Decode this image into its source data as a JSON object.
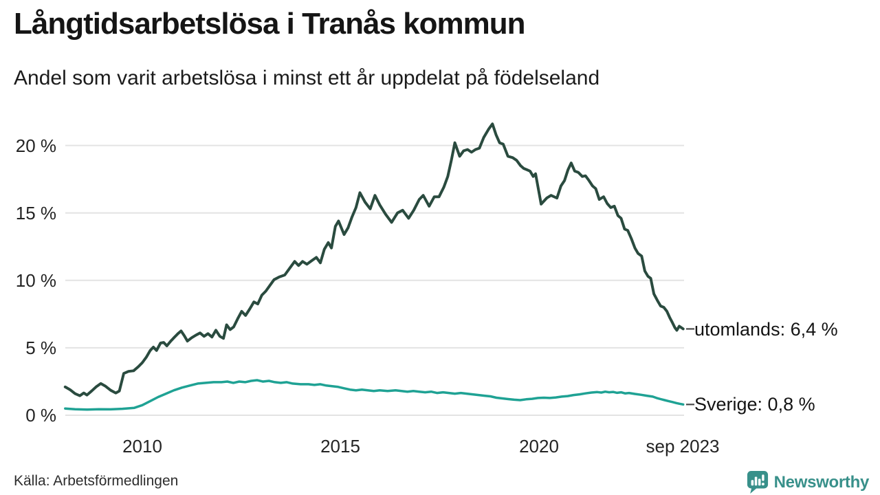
{
  "header": {
    "title": "Långtidsarbetslösa i Tranås kommun",
    "subtitle": "Andel som varit arbetslösa i minst ett år uppdelat på födelseland"
  },
  "footer": {
    "source": "Källa: Arbetsförmedlingen",
    "brand": "Newsworthy",
    "brand_color": "#38908a"
  },
  "chart_data": {
    "type": "line",
    "title": "Långtidsarbetslösa i Tranås kommun",
    "subtitle": "Andel som varit arbetslösa i minst ett år uppdelat på födelseland",
    "unit": "%",
    "x_range": [
      2008.0,
      2023.75
    ],
    "ylim": [
      0,
      22
    ],
    "grid": "horizontal",
    "grid_color": "#e3e3e3",
    "background": "#ffffff",
    "legend_position": "right-end-labels",
    "y_ticks": [
      {
        "value": 20,
        "label": "20 %"
      },
      {
        "value": 15,
        "label": "15 %"
      },
      {
        "value": 10,
        "label": "10 %"
      },
      {
        "value": 5,
        "label": "5 %"
      },
      {
        "value": 0,
        "label": "0 %"
      }
    ],
    "x_ticks": [
      {
        "year": 2010,
        "label": "2010"
      },
      {
        "year": 2015,
        "label": "2015"
      },
      {
        "year": 2020,
        "label": "2020"
      },
      {
        "year": 2023.67,
        "label": "sep 2023"
      }
    ],
    "series": [
      {
        "name": "utomlands",
        "end_label": "utomlands: 6,4 %",
        "last_value": 6.4,
        "color": "#2a4b3f",
        "stroke_width": 4,
        "points": [
          [
            2008.05,
            2.1
          ],
          [
            2008.17,
            1.9
          ],
          [
            2008.3,
            1.6
          ],
          [
            2008.42,
            1.45
          ],
          [
            2008.52,
            1.65
          ],
          [
            2008.6,
            1.5
          ],
          [
            2008.72,
            1.8
          ],
          [
            2008.83,
            2.1
          ],
          [
            2008.95,
            2.35
          ],
          [
            2009.07,
            2.15
          ],
          [
            2009.2,
            1.85
          ],
          [
            2009.33,
            1.65
          ],
          [
            2009.42,
            1.8
          ],
          [
            2009.53,
            3.1
          ],
          [
            2009.65,
            3.25
          ],
          [
            2009.78,
            3.3
          ],
          [
            2009.9,
            3.6
          ],
          [
            2010.0,
            3.9
          ],
          [
            2010.1,
            4.3
          ],
          [
            2010.2,
            4.8
          ],
          [
            2010.28,
            5.05
          ],
          [
            2010.36,
            4.8
          ],
          [
            2010.46,
            5.35
          ],
          [
            2010.54,
            5.4
          ],
          [
            2010.62,
            5.15
          ],
          [
            2010.72,
            5.5
          ],
          [
            2010.8,
            5.75
          ],
          [
            2010.9,
            6.05
          ],
          [
            2010.98,
            6.25
          ],
          [
            2011.06,
            5.9
          ],
          [
            2011.14,
            5.5
          ],
          [
            2011.25,
            5.75
          ],
          [
            2011.36,
            5.95
          ],
          [
            2011.46,
            6.1
          ],
          [
            2011.56,
            5.85
          ],
          [
            2011.66,
            6.05
          ],
          [
            2011.76,
            5.8
          ],
          [
            2011.86,
            6.3
          ],
          [
            2011.96,
            5.85
          ],
          [
            2012.05,
            5.7
          ],
          [
            2012.13,
            6.7
          ],
          [
            2012.22,
            6.35
          ],
          [
            2012.31,
            6.55
          ],
          [
            2012.41,
            7.15
          ],
          [
            2012.51,
            7.7
          ],
          [
            2012.61,
            7.4
          ],
          [
            2012.72,
            7.9
          ],
          [
            2012.82,
            8.4
          ],
          [
            2012.92,
            8.25
          ],
          [
            2013.02,
            8.9
          ],
          [
            2013.12,
            9.2
          ],
          [
            2013.22,
            9.6
          ],
          [
            2013.33,
            10.05
          ],
          [
            2013.46,
            10.25
          ],
          [
            2013.6,
            10.4
          ],
          [
            2013.75,
            11.0
          ],
          [
            2013.85,
            11.4
          ],
          [
            2013.95,
            11.1
          ],
          [
            2014.05,
            11.4
          ],
          [
            2014.16,
            11.2
          ],
          [
            2014.3,
            11.5
          ],
          [
            2014.4,
            11.7
          ],
          [
            2014.5,
            11.3
          ],
          [
            2014.6,
            12.3
          ],
          [
            2014.7,
            12.8
          ],
          [
            2014.78,
            12.4
          ],
          [
            2014.88,
            14.0
          ],
          [
            2014.96,
            14.4
          ],
          [
            2015.1,
            13.4
          ],
          [
            2015.2,
            13.9
          ],
          [
            2015.3,
            14.7
          ],
          [
            2015.4,
            15.4
          ],
          [
            2015.5,
            16.5
          ],
          [
            2015.63,
            15.8
          ],
          [
            2015.76,
            15.3
          ],
          [
            2015.88,
            16.3
          ],
          [
            2016.0,
            15.6
          ],
          [
            2016.15,
            14.9
          ],
          [
            2016.3,
            14.3
          ],
          [
            2016.45,
            15.0
          ],
          [
            2016.58,
            15.2
          ],
          [
            2016.73,
            14.6
          ],
          [
            2016.86,
            15.2
          ],
          [
            2017.0,
            16.0
          ],
          [
            2017.1,
            16.3
          ],
          [
            2017.25,
            15.5
          ],
          [
            2017.38,
            16.2
          ],
          [
            2017.5,
            16.2
          ],
          [
            2017.62,
            16.9
          ],
          [
            2017.72,
            17.7
          ],
          [
            2017.81,
            18.9
          ],
          [
            2017.9,
            20.2
          ],
          [
            2018.02,
            19.2
          ],
          [
            2018.12,
            19.6
          ],
          [
            2018.22,
            19.7
          ],
          [
            2018.32,
            19.5
          ],
          [
            2018.42,
            19.7
          ],
          [
            2018.52,
            19.8
          ],
          [
            2018.63,
            20.6
          ],
          [
            2018.75,
            21.2
          ],
          [
            2018.85,
            21.6
          ],
          [
            2018.94,
            20.8
          ],
          [
            2019.03,
            20.2
          ],
          [
            2019.12,
            20.1
          ],
          [
            2019.24,
            19.2
          ],
          [
            2019.36,
            19.1
          ],
          [
            2019.46,
            18.9
          ],
          [
            2019.56,
            18.5
          ],
          [
            2019.64,
            18.3
          ],
          [
            2019.72,
            18.2
          ],
          [
            2019.8,
            18.1
          ],
          [
            2019.88,
            17.7
          ],
          [
            2019.94,
            17.9
          ],
          [
            2020.02,
            16.6
          ],
          [
            2020.08,
            15.65
          ],
          [
            2020.22,
            16.1
          ],
          [
            2020.33,
            16.3
          ],
          [
            2020.48,
            16.1
          ],
          [
            2020.58,
            17.0
          ],
          [
            2020.67,
            17.4
          ],
          [
            2020.76,
            18.2
          ],
          [
            2020.84,
            18.7
          ],
          [
            2020.93,
            18.1
          ],
          [
            2021.02,
            18.0
          ],
          [
            2021.12,
            17.7
          ],
          [
            2021.2,
            17.75
          ],
          [
            2021.29,
            17.4
          ],
          [
            2021.38,
            17.0
          ],
          [
            2021.46,
            16.8
          ],
          [
            2021.55,
            16.0
          ],
          [
            2021.66,
            16.2
          ],
          [
            2021.75,
            15.7
          ],
          [
            2021.84,
            15.4
          ],
          [
            2021.93,
            15.5
          ],
          [
            2022.02,
            14.8
          ],
          [
            2022.1,
            14.6
          ],
          [
            2022.19,
            13.8
          ],
          [
            2022.27,
            13.7
          ],
          [
            2022.36,
            13.1
          ],
          [
            2022.45,
            12.4
          ],
          [
            2022.53,
            12.0
          ],
          [
            2022.62,
            11.8
          ],
          [
            2022.7,
            10.7
          ],
          [
            2022.78,
            10.3
          ],
          [
            2022.85,
            10.15
          ],
          [
            2022.93,
            9.0
          ],
          [
            2023.02,
            8.5
          ],
          [
            2023.1,
            8.1
          ],
          [
            2023.18,
            8.0
          ],
          [
            2023.26,
            7.7
          ],
          [
            2023.33,
            7.25
          ],
          [
            2023.4,
            6.85
          ],
          [
            2023.46,
            6.5
          ],
          [
            2023.51,
            6.3
          ],
          [
            2023.57,
            6.6
          ],
          [
            2023.67,
            6.4
          ]
        ]
      },
      {
        "name": "Sverige",
        "end_label": "Sverige: 0,8 %",
        "last_value": 0.8,
        "color": "#1fa294",
        "stroke_width": 3.5,
        "points": [
          [
            2008.05,
            0.5
          ],
          [
            2008.3,
            0.45
          ],
          [
            2008.6,
            0.42
          ],
          [
            2008.9,
            0.45
          ],
          [
            2009.2,
            0.44
          ],
          [
            2009.5,
            0.48
          ],
          [
            2009.8,
            0.55
          ],
          [
            2010.0,
            0.75
          ],
          [
            2010.2,
            1.05
          ],
          [
            2010.4,
            1.35
          ],
          [
            2010.6,
            1.6
          ],
          [
            2010.8,
            1.85
          ],
          [
            2011.0,
            2.05
          ],
          [
            2011.2,
            2.2
          ],
          [
            2011.4,
            2.35
          ],
          [
            2011.6,
            2.4
          ],
          [
            2011.8,
            2.45
          ],
          [
            2012.0,
            2.45
          ],
          [
            2012.15,
            2.5
          ],
          [
            2012.3,
            2.4
          ],
          [
            2012.45,
            2.5
          ],
          [
            2012.6,
            2.45
          ],
          [
            2012.75,
            2.55
          ],
          [
            2012.9,
            2.6
          ],
          [
            2013.05,
            2.5
          ],
          [
            2013.2,
            2.55
          ],
          [
            2013.35,
            2.45
          ],
          [
            2013.5,
            2.4
          ],
          [
            2013.65,
            2.45
          ],
          [
            2013.8,
            2.35
          ],
          [
            2014.0,
            2.3
          ],
          [
            2014.2,
            2.3
          ],
          [
            2014.35,
            2.25
          ],
          [
            2014.5,
            2.3
          ],
          [
            2014.65,
            2.2
          ],
          [
            2014.8,
            2.15
          ],
          [
            2014.95,
            2.1
          ],
          [
            2015.1,
            2.0
          ],
          [
            2015.25,
            1.9
          ],
          [
            2015.4,
            1.85
          ],
          [
            2015.55,
            1.9
          ],
          [
            2015.7,
            1.85
          ],
          [
            2015.85,
            1.8
          ],
          [
            2016.0,
            1.85
          ],
          [
            2016.2,
            1.8
          ],
          [
            2016.4,
            1.85
          ],
          [
            2016.55,
            1.8
          ],
          [
            2016.7,
            1.75
          ],
          [
            2016.85,
            1.8
          ],
          [
            2017.0,
            1.75
          ],
          [
            2017.15,
            1.7
          ],
          [
            2017.3,
            1.75
          ],
          [
            2017.45,
            1.65
          ],
          [
            2017.6,
            1.7
          ],
          [
            2017.75,
            1.65
          ],
          [
            2017.9,
            1.6
          ],
          [
            2018.05,
            1.65
          ],
          [
            2018.2,
            1.6
          ],
          [
            2018.35,
            1.55
          ],
          [
            2018.5,
            1.5
          ],
          [
            2018.65,
            1.45
          ],
          [
            2018.8,
            1.4
          ],
          [
            2018.95,
            1.3
          ],
          [
            2019.1,
            1.25
          ],
          [
            2019.25,
            1.2
          ],
          [
            2019.4,
            1.15
          ],
          [
            2019.55,
            1.12
          ],
          [
            2019.7,
            1.18
          ],
          [
            2019.85,
            1.22
          ],
          [
            2020.0,
            1.28
          ],
          [
            2020.15,
            1.3
          ],
          [
            2020.3,
            1.28
          ],
          [
            2020.45,
            1.32
          ],
          [
            2020.6,
            1.38
          ],
          [
            2020.75,
            1.42
          ],
          [
            2020.9,
            1.5
          ],
          [
            2021.05,
            1.55
          ],
          [
            2021.2,
            1.62
          ],
          [
            2021.35,
            1.68
          ],
          [
            2021.5,
            1.72
          ],
          [
            2021.6,
            1.68
          ],
          [
            2021.7,
            1.75
          ],
          [
            2021.8,
            1.7
          ],
          [
            2021.9,
            1.73
          ],
          [
            2022.0,
            1.66
          ],
          [
            2022.1,
            1.7
          ],
          [
            2022.2,
            1.62
          ],
          [
            2022.3,
            1.65
          ],
          [
            2022.45,
            1.58
          ],
          [
            2022.6,
            1.52
          ],
          [
            2022.75,
            1.45
          ],
          [
            2022.9,
            1.38
          ],
          [
            2023.0,
            1.28
          ],
          [
            2023.1,
            1.2
          ],
          [
            2023.2,
            1.12
          ],
          [
            2023.3,
            1.05
          ],
          [
            2023.4,
            0.98
          ],
          [
            2023.5,
            0.9
          ],
          [
            2023.58,
            0.85
          ],
          [
            2023.67,
            0.8
          ]
        ]
      }
    ]
  }
}
